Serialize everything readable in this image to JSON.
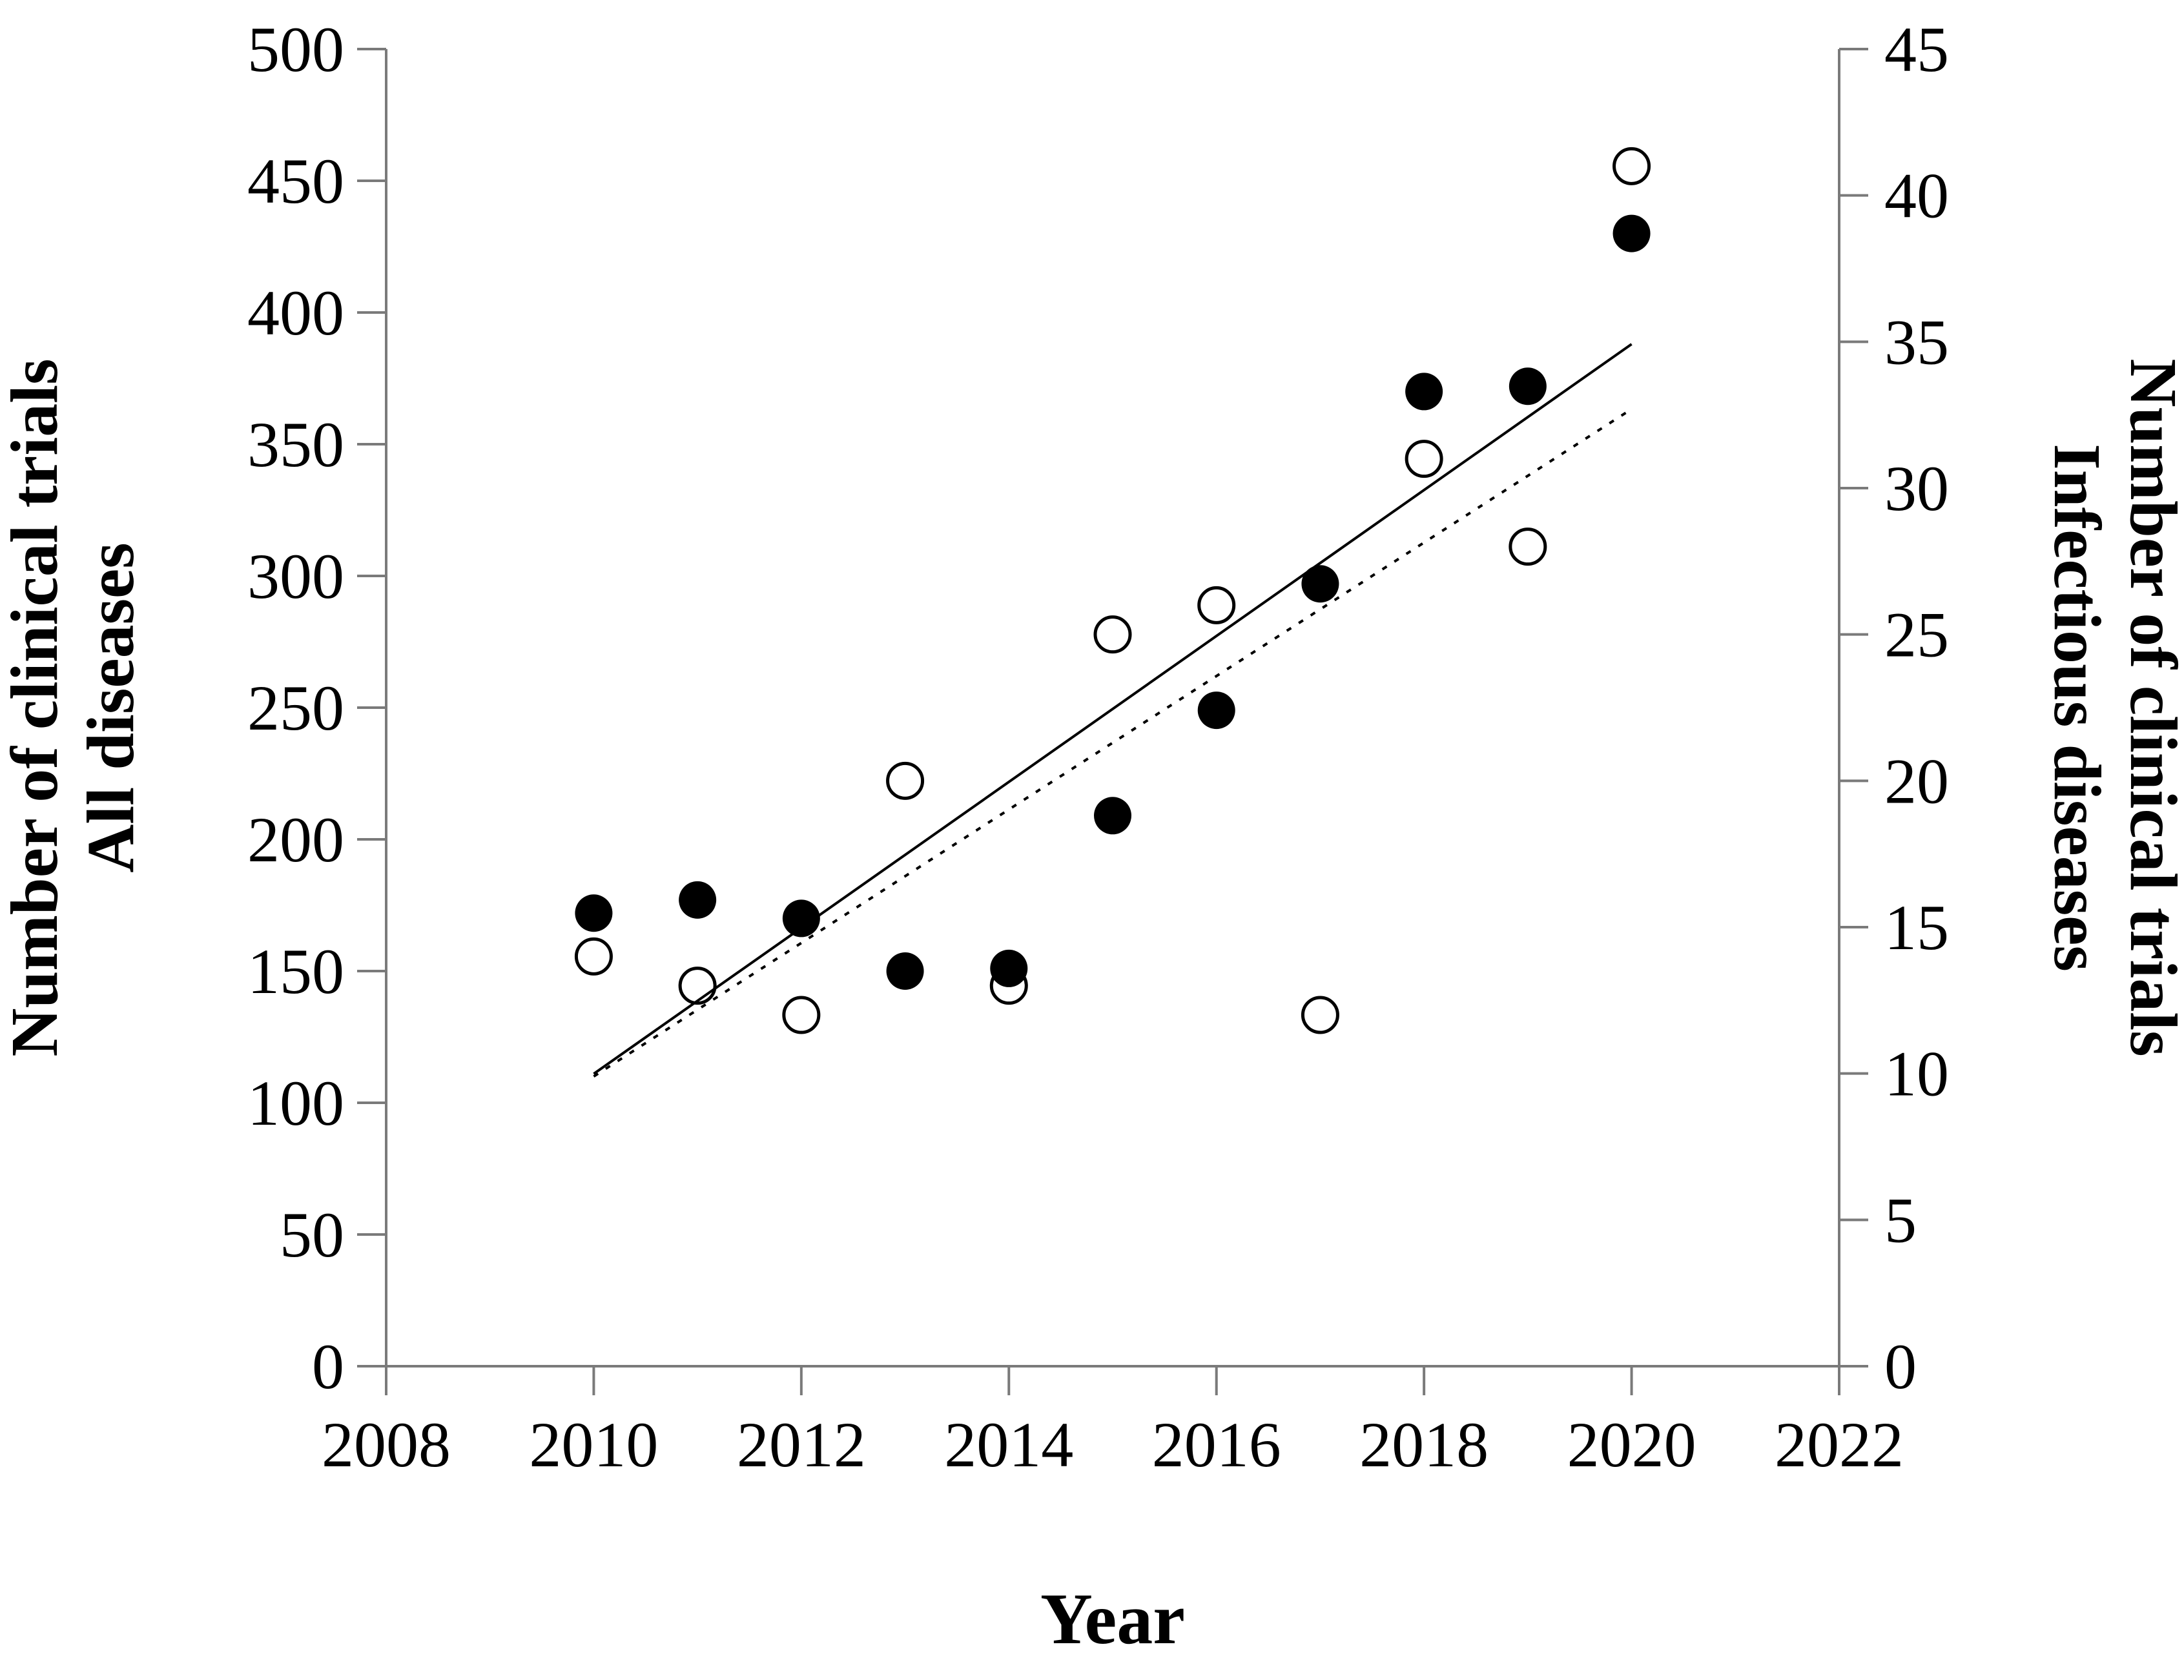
{
  "colors": {
    "background": "#ffffff",
    "axis": "#7a7a7a",
    "marker": "#000000",
    "text": "#000000"
  },
  "chart_data": {
    "type": "scatter",
    "title": "",
    "xlabel": "Year",
    "ylabel_left_line1": "Number of clinical trials",
    "ylabel_left_line2": "All diseases",
    "ylabel_right_line1": "Number of clinical trials",
    "ylabel_right_line2": "Infectious diseases",
    "xlim": [
      2008,
      2022
    ],
    "x_ticks": [
      2008,
      2010,
      2012,
      2014,
      2016,
      2018,
      2020,
      2022
    ],
    "ylim_left": [
      0,
      500
    ],
    "ytick_step_left": 50,
    "ylim_right": [
      0,
      45
    ],
    "ytick_step_right": 5,
    "grid": false,
    "legend": false,
    "series": [
      {
        "name": "All diseases",
        "axis": "left",
        "marker": "filled-circle",
        "x": [
          2010,
          2011,
          2012,
          2013,
          2014,
          2015,
          2016,
          2017,
          2018,
          2019,
          2020
        ],
        "y": [
          172,
          177,
          170,
          150,
          151,
          209,
          249,
          297,
          370,
          372,
          430
        ]
      },
      {
        "name": "Infectious diseases",
        "axis": "right",
        "marker": "open-circle",
        "x": [
          2010,
          2011,
          2012,
          2013,
          2014,
          2015,
          2016,
          2017,
          2018,
          2019,
          2020
        ],
        "y": [
          14,
          13,
          12,
          20,
          13,
          25,
          26,
          12,
          31,
          28,
          41
        ]
      }
    ],
    "trend_lines": [
      {
        "series": "All diseases",
        "style": "solid",
        "axis": "left",
        "x": [
          2010,
          2020
        ],
        "y": [
          111,
          388
        ]
      },
      {
        "series": "Infectious diseases",
        "style": "dotted",
        "axis": "right",
        "x": [
          2010,
          2020
        ],
        "y": [
          9.9,
          32.7
        ]
      }
    ]
  }
}
